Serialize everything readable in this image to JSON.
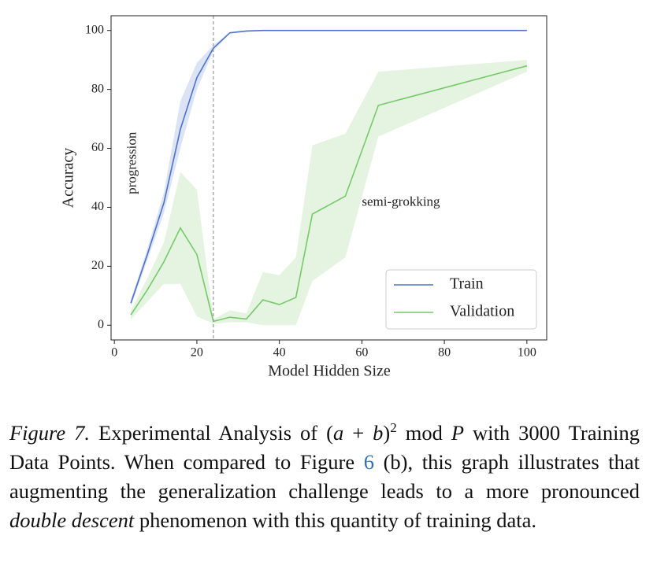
{
  "chart_data": {
    "type": "line",
    "xlabel": "Model Hidden Size",
    "ylabel": "Accuracy",
    "x": [
      4,
      8,
      12,
      16,
      20,
      24,
      28,
      32,
      36,
      40,
      44,
      48,
      56,
      64,
      100
    ],
    "series": [
      {
        "name": "Train",
        "color": "#4c72c6",
        "band_color": "#4c72c6",
        "values": [
          7.5,
          24,
          41.5,
          66.5,
          84,
          94,
          99.2,
          99.8,
          100,
          100,
          100,
          100,
          100,
          100,
          100
        ],
        "lower": [
          6.5,
          22,
          38,
          60,
          80,
          93,
          99,
          99.6,
          100,
          100,
          100,
          100,
          100,
          100,
          100
        ],
        "upper": [
          8.5,
          26,
          45,
          76,
          89,
          95,
          99.5,
          100,
          100,
          100,
          100,
          100,
          100,
          100,
          100
        ]
      },
      {
        "name": "Validation",
        "color": "#77c96a",
        "band_color": "#77c96a",
        "values": [
          3.5,
          12,
          21.5,
          33,
          24,
          1.3,
          2.7,
          2.1,
          8.6,
          7,
          9.4,
          37.7,
          43.8,
          74.6,
          88
        ],
        "lower": [
          2,
          8,
          14,
          14,
          3,
          0.5,
          1,
          1,
          0,
          0,
          0,
          15,
          23,
          64,
          86
        ],
        "upper": [
          5,
          16,
          28,
          52,
          46,
          2,
          5,
          4,
          18,
          17,
          23,
          61,
          65,
          86,
          90
        ]
      }
    ],
    "vline": 24,
    "annotations": [
      {
        "text": "progression",
        "x": 4.5,
        "y": 55,
        "rotation": -90
      },
      {
        "text": "semi-grokking",
        "x": 60,
        "y": 41.5,
        "rotation": 0
      }
    ],
    "xlim": [
      -0.8,
      104.8
    ],
    "ylim": [
      -5,
      105
    ],
    "xticks": [
      0,
      20,
      40,
      60,
      80,
      100
    ],
    "yticks": [
      0,
      20,
      40,
      60,
      80,
      100
    ],
    "legend": "lower right"
  },
  "caption": {
    "segments": [
      {
        "text": "Figure 7.",
        "style": "italic"
      },
      {
        "text": " Experimental Analysis of ("
      },
      {
        "text": "a",
        "style": "italic"
      },
      {
        "text": " + "
      },
      {
        "text": "b",
        "style": "italic"
      },
      {
        "text": ")"
      },
      {
        "text": "2",
        "style": "sup"
      },
      {
        "text": " mod "
      },
      {
        "text": "P",
        "style": "italic"
      },
      {
        "text": " with 3000 Training Data Points. When compared to Figure "
      },
      {
        "text": "6",
        "style": "link"
      },
      {
        "text": " (b), this graph illustrates that augmenting the generalization challenge leads to a more pronounced "
      },
      {
        "text": "double descent",
        "style": "italic"
      },
      {
        "text": " phenomenon with this quantity of training data."
      }
    ]
  }
}
